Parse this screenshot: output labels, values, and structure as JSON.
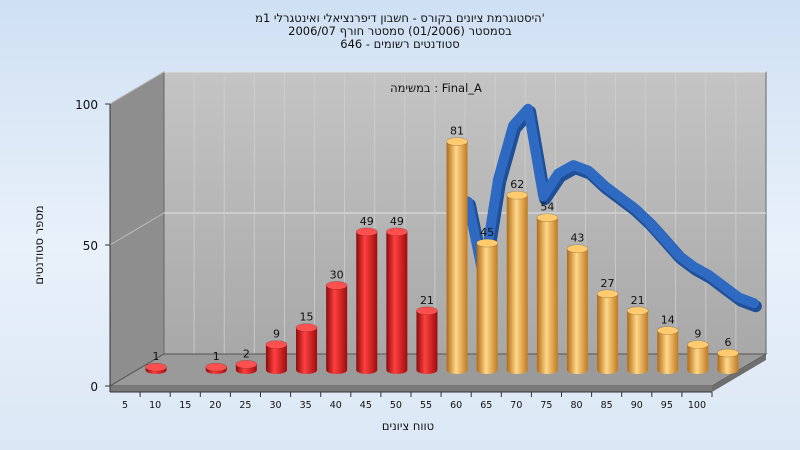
{
  "title_lines": [
    "היסטוגרמת ציונים בקורס - חשבון דיפרנציאלי ואינטגרלי 1מ'",
    "בסמסטר  (01/2006)  סמסטר חורף  2006/07",
    "סטודנטים רשומים - 646"
  ],
  "chart_data": {
    "type": "bar",
    "annotation": "במשימה : Final_A",
    "xlabel": "טווח ציונים",
    "ylabel": "מספר סטודנטים",
    "ylim": [
      0,
      100
    ],
    "y_ticks": [
      0,
      50,
      100
    ],
    "categories": [
      "5",
      "10",
      "15",
      "20",
      "25",
      "30",
      "35",
      "40",
      "45",
      "50",
      "55",
      "60",
      "65",
      "70",
      "75",
      "80",
      "85",
      "90",
      "95",
      "100"
    ],
    "values": [
      1,
      0,
      1,
      2,
      9,
      15,
      30,
      49,
      49,
      21,
      81,
      45,
      62,
      54,
      43,
      27,
      21,
      14,
      9,
      6
    ],
    "data_labels": [
      "1",
      "",
      "1",
      "2",
      "9",
      "15",
      "30",
      "49",
      "49",
      "21",
      "81",
      "45",
      "62",
      "54",
      "43",
      "27",
      "21",
      "14",
      "9",
      "6"
    ],
    "bar_colors": [
      "#d61818",
      "#d61818",
      "#d61818",
      "#d61818",
      "#d61818",
      "#d61818",
      "#d61818",
      "#d61818",
      "#d61818",
      "#d61818",
      "#f0a840",
      "#f0a840",
      "#f0a840",
      "#f0a840",
      "#f0a840",
      "#f0a840",
      "#f0a840",
      "#f0a840",
      "#f0a840",
      "#f0a840"
    ],
    "curve": {
      "x": [
        50,
        52.5,
        55,
        57.5,
        60,
        62.5,
        65,
        67.5,
        70,
        72.5,
        75,
        77.5,
        80,
        82.5,
        85,
        87.5,
        90,
        92.5,
        95,
        97.5,
        100
      ],
      "values": [
        56,
        54,
        28,
        62,
        81,
        87,
        56,
        64,
        67,
        65,
        60,
        56,
        52,
        47,
        41,
        35,
        31,
        28,
        24,
        20,
        18
      ]
    },
    "grid": true,
    "legend": "none"
  },
  "colors": {
    "low_bar": "#d61818",
    "high_bar": "#f0a840",
    "curve": "#2e69c2",
    "wall_back": "#b8b8b8",
    "wall_left": "#8e8e8e"
  }
}
